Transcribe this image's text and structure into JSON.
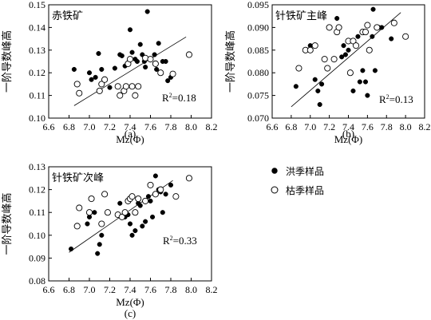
{
  "legend": [
    {
      "label": "洪季样品",
      "marker": "filled-circle"
    },
    {
      "label": "枯季样品",
      "marker": "open-circle"
    }
  ],
  "chart_data": [
    {
      "type": "scatter",
      "title": "赤铁矿",
      "caption": "(a)",
      "xlabel": "Mz(Φ)",
      "ylabel": "一阶导数峰高",
      "xlim": [
        6.6,
        8.2
      ],
      "ylim": [
        0.1,
        0.15
      ],
      "xticks": [
        "6.6",
        "6.8",
        "7.0",
        "7.2",
        "7.4",
        "7.6",
        "7.8",
        "8.0",
        "8.2"
      ],
      "yticks": [
        "0.10",
        "0.11",
        "0.12",
        "0.13",
        "0.14",
        "0.15"
      ],
      "r2_base": "R",
      "r2_sup": "2",
      "r2_value": "=0.18",
      "trendline": {
        "x": [
          6.85,
          7.95
        ],
        "y": [
          0.1055,
          0.1358
        ]
      },
      "series": [
        {
          "name": "洪季样品",
          "marker": "filled",
          "x": [
            6.85,
            7.0,
            7.02,
            7.06,
            7.09,
            7.12,
            7.2,
            7.25,
            7.3,
            7.32,
            7.35,
            7.4,
            7.42,
            7.45,
            7.47,
            7.5,
            7.52,
            7.54,
            7.55,
            7.57,
            7.6,
            7.64,
            7.66,
            7.68,
            7.72,
            7.75,
            7.77,
            7.8
          ],
          "y": [
            0.1215,
            0.12,
            0.117,
            0.118,
            0.1285,
            0.1215,
            0.1135,
            0.122,
            0.128,
            0.1275,
            0.123,
            0.139,
            0.129,
            0.126,
            0.125,
            0.1325,
            0.128,
            0.125,
            0.1225,
            0.147,
            0.126,
            0.128,
            0.1215,
            0.133,
            0.125,
            0.125,
            0.1165,
            0.118
          ]
        },
        {
          "name": "枯季样品",
          "marker": "open",
          "x": [
            6.88,
            6.9,
            7.1,
            7.12,
            7.15,
            7.28,
            7.3,
            7.34,
            7.36,
            7.38,
            7.4,
            7.42,
            7.45,
            7.48,
            7.55,
            7.6,
            7.65,
            7.7,
            7.82,
            7.98
          ],
          "y": [
            0.115,
            0.111,
            0.112,
            0.115,
            0.117,
            0.114,
            0.11,
            0.112,
            0.114,
            0.124,
            0.126,
            0.114,
            0.11,
            0.114,
            0.1265,
            0.126,
            0.124,
            0.12,
            0.1195,
            0.128
          ]
        }
      ]
    },
    {
      "type": "scatter",
      "title": "针铁矿主峰",
      "caption": "(b)",
      "xlabel": "Mz(Φ)",
      "ylabel": "一阶导数峰高",
      "xlim": [
        6.6,
        8.2
      ],
      "ylim": [
        0.07,
        0.095
      ],
      "xticks": [
        "6.6",
        "6.8",
        "7.0",
        "7.2",
        "7.4",
        "7.6",
        "7.8",
        "8.0",
        "8.2"
      ],
      "yticks": [
        "0.070",
        "0.075",
        "0.080",
        "0.085",
        "0.090",
        "0.095"
      ],
      "r2_base": "R",
      "r2_sup": "2",
      "r2_value": "=0.13",
      "trendline": {
        "x": [
          6.8,
          7.95
        ],
        "y": [
          0.0725,
          0.0933
        ]
      },
      "series": [
        {
          "name": "洪季样品",
          "marker": "filled",
          "x": [
            6.85,
            7.0,
            7.05,
            7.08,
            7.1,
            7.12,
            7.28,
            7.33,
            7.35,
            7.37,
            7.4,
            7.45,
            7.5,
            7.52,
            7.55,
            7.58,
            7.6,
            7.65,
            7.66,
            7.68,
            7.7,
            7.72,
            7.75,
            7.85
          ],
          "y": [
            0.077,
            0.086,
            0.0785,
            0.076,
            0.073,
            0.0775,
            0.092,
            0.0835,
            0.086,
            0.084,
            0.085,
            0.076,
            0.088,
            0.078,
            0.0805,
            0.078,
            0.075,
            0.088,
            0.094,
            0.0805,
            0.09,
            0.09,
            0.09,
            0.0875
          ]
        },
        {
          "name": "枯季样品",
          "marker": "open",
          "x": [
            6.88,
            6.95,
            7.0,
            7.05,
            7.15,
            7.18,
            7.2,
            7.25,
            7.28,
            7.3,
            7.4,
            7.42,
            7.45,
            7.48,
            7.55,
            7.58,
            7.6,
            7.62,
            7.7,
            7.88,
            8.0
          ],
          "y": [
            0.081,
            0.085,
            0.085,
            0.086,
            0.083,
            0.081,
            0.09,
            0.083,
            0.089,
            0.09,
            0.087,
            0.08,
            0.087,
            0.086,
            0.089,
            0.089,
            0.0905,
            0.085,
            0.09,
            0.091,
            0.088
          ]
        }
      ]
    },
    {
      "type": "scatter",
      "title": "针铁矿次峰",
      "caption": "(c)",
      "xlabel": "Mz(Φ)",
      "ylabel": "一阶导数峰高",
      "xlim": [
        6.6,
        8.2
      ],
      "ylim": [
        0.08,
        0.13
      ],
      "xticks": [
        "6.6",
        "6.8",
        "7.0",
        "7.2",
        "7.4",
        "7.6",
        "7.8",
        "8.0",
        "8.2"
      ],
      "yticks": [
        "0.08",
        "0.09",
        "0.10",
        "0.11",
        "0.12",
        "0.13"
      ],
      "r2_base": "R",
      "r2_sup": "2",
      "r2_value": "=0.33",
      "trendline": {
        "x": [
          6.8,
          7.82
        ],
        "y": [
          0.0925,
          0.124
        ]
      },
      "series": [
        {
          "name": "洪季样品",
          "marker": "filled",
          "x": [
            6.82,
            6.98,
            7.0,
            7.05,
            7.08,
            7.1,
            7.12,
            7.3,
            7.35,
            7.38,
            7.4,
            7.42,
            7.45,
            7.48,
            7.5,
            7.52,
            7.55,
            7.58,
            7.6,
            7.62,
            7.65,
            7.68,
            7.7,
            7.72,
            7.75,
            7.8
          ],
          "y": [
            0.094,
            0.105,
            0.108,
            0.11,
            0.092,
            0.096,
            0.1,
            0.114,
            0.108,
            0.109,
            0.105,
            0.1,
            0.102,
            0.114,
            0.113,
            0.104,
            0.106,
            0.117,
            0.115,
            0.108,
            0.126,
            0.12,
            0.119,
            0.11,
            0.118,
            0.122
          ]
        },
        {
          "name": "枯季样品",
          "marker": "open",
          "x": [
            6.88,
            6.9,
            7.0,
            7.02,
            7.12,
            7.15,
            7.18,
            7.28,
            7.32,
            7.35,
            7.38,
            7.4,
            7.42,
            7.45,
            7.48,
            7.55,
            7.6,
            7.65,
            7.7,
            7.85,
            7.98
          ],
          "y": [
            0.104,
            0.112,
            0.11,
            0.116,
            0.105,
            0.118,
            0.11,
            0.109,
            0.108,
            0.11,
            0.115,
            0.116,
            0.117,
            0.11,
            0.116,
            0.115,
            0.122,
            0.118,
            0.12,
            0.117,
            0.125
          ]
        }
      ]
    }
  ]
}
